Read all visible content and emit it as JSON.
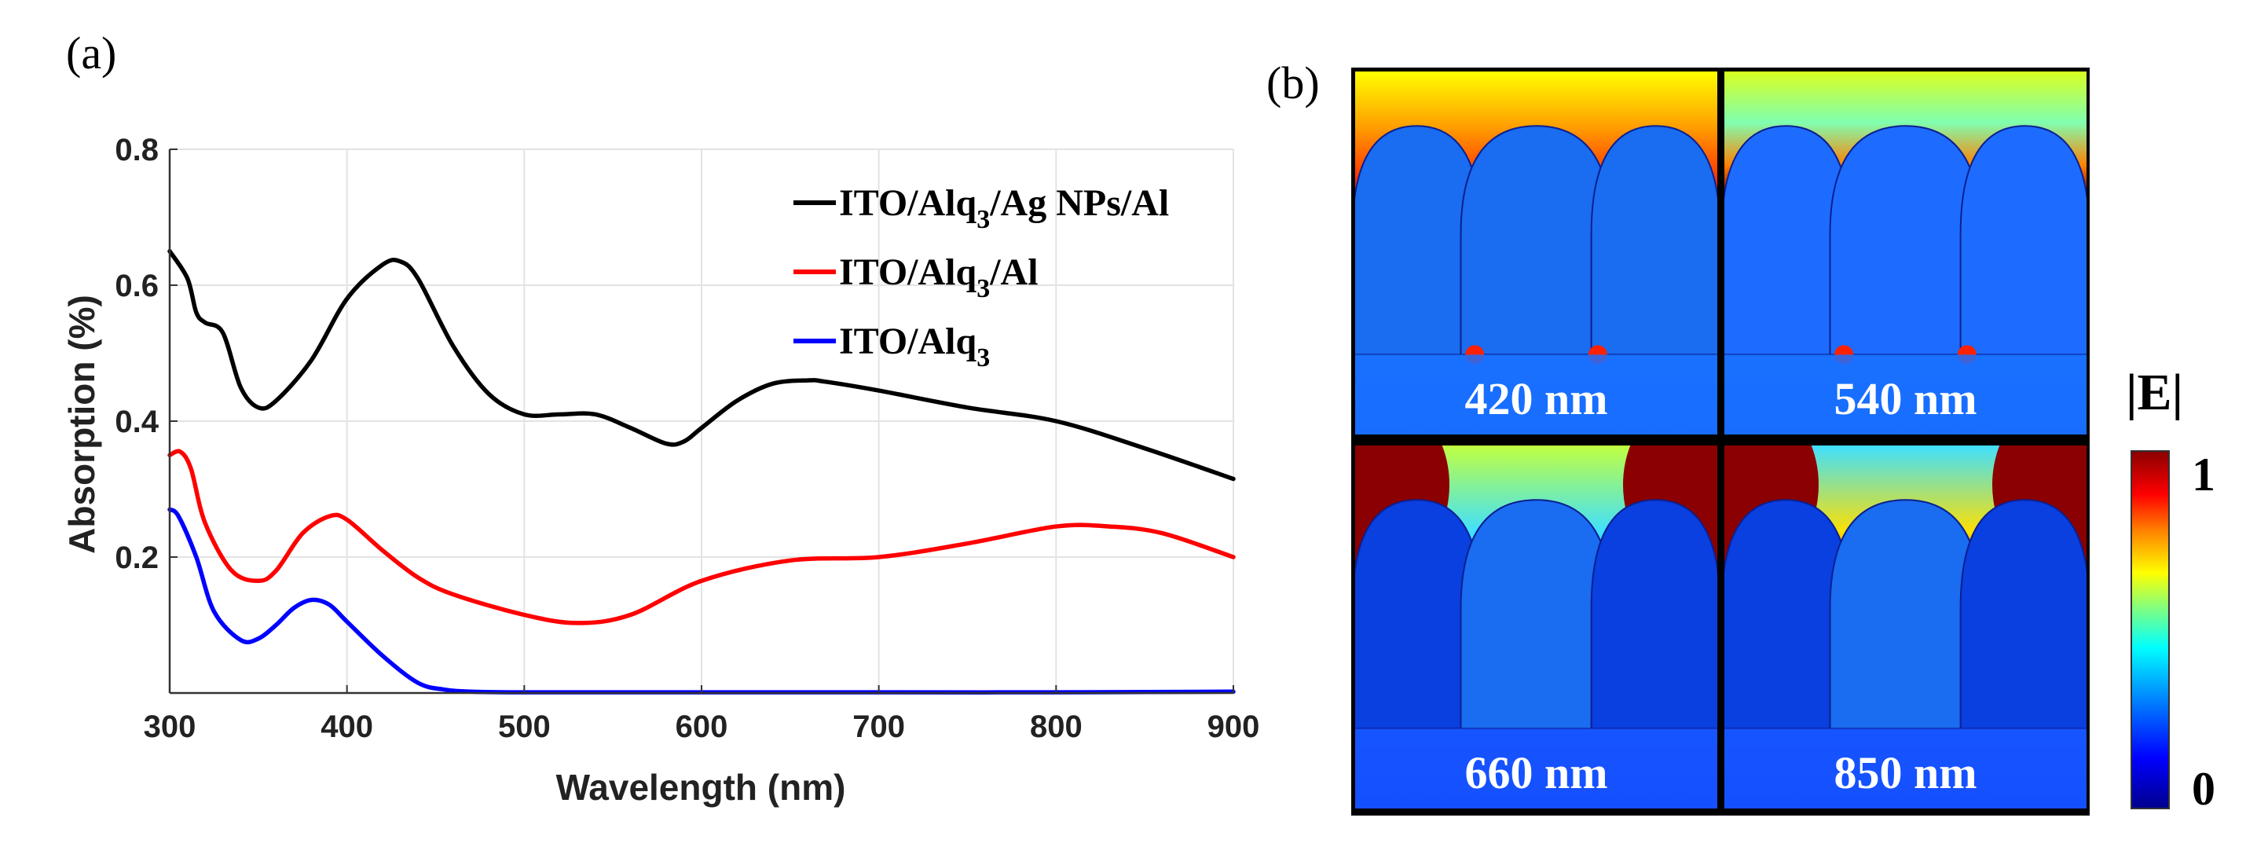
{
  "panels": {
    "a": "(a)",
    "b": "(b)"
  },
  "chart_data": {
    "type": "line",
    "title": "",
    "xlabel": "Wavelength (nm)",
    "ylabel": "Absorption (%)",
    "xlim": [
      300,
      900
    ],
    "ylim": [
      0,
      0.8
    ],
    "x_ticks": [
      "300",
      "400",
      "500",
      "600",
      "700",
      "800",
      "900"
    ],
    "y_ticks": [
      "0.2",
      "0.4",
      "0.6",
      "0.8"
    ],
    "grid": true,
    "legend_position": "top-right",
    "series": [
      {
        "name": "ITO/Alq3/Ag NPs/Al",
        "legend_main": "ITO/Alq",
        "legend_sub": "3",
        "legend_tail": "/Ag NPs/Al",
        "color": "#000000",
        "x": [
          300,
          310,
          315,
          320,
          330,
          340,
          350,
          360,
          380,
          400,
          420,
          430,
          440,
          460,
          480,
          500,
          520,
          540,
          560,
          580,
          590,
          600,
          620,
          640,
          660,
          670,
          700,
          750,
          800,
          850,
          900
        ],
        "y": [
          0.65,
          0.61,
          0.56,
          0.545,
          0.53,
          0.45,
          0.42,
          0.43,
          0.49,
          0.58,
          0.63,
          0.635,
          0.61,
          0.51,
          0.44,
          0.41,
          0.41,
          0.41,
          0.39,
          0.367,
          0.37,
          0.39,
          0.43,
          0.455,
          0.46,
          0.458,
          0.445,
          0.42,
          0.4,
          0.36,
          0.315
        ]
      },
      {
        "name": "ITO/Alq3/Al",
        "legend_main": "ITO/Alq",
        "legend_sub": "3",
        "legend_tail": "/Al",
        "color": "#ff0000",
        "x": [
          300,
          306,
          312,
          320,
          335,
          350,
          360,
          375,
          390,
          400,
          420,
          440,
          460,
          500,
          530,
          560,
          600,
          650,
          700,
          750,
          800,
          830,
          860,
          900
        ],
        "y": [
          0.35,
          0.355,
          0.33,
          0.25,
          0.18,
          0.165,
          0.18,
          0.235,
          0.26,
          0.255,
          0.21,
          0.17,
          0.145,
          0.115,
          0.103,
          0.115,
          0.165,
          0.195,
          0.2,
          0.22,
          0.245,
          0.245,
          0.235,
          0.2
        ]
      },
      {
        "name": "ITO/Alq3",
        "legend_main": "ITO/Alq",
        "legend_sub": "3",
        "legend_tail": "",
        "color": "#0000ff",
        "x": [
          300,
          305,
          315,
          325,
          340,
          350,
          360,
          370,
          380,
          390,
          400,
          420,
          440,
          455,
          470,
          500,
          600,
          700,
          800,
          900
        ],
        "y": [
          0.27,
          0.26,
          0.2,
          0.12,
          0.078,
          0.08,
          0.1,
          0.125,
          0.137,
          0.13,
          0.105,
          0.055,
          0.015,
          0.005,
          0.002,
          0.001,
          0.001,
          0.001,
          0.001,
          0.002
        ]
      }
    ]
  },
  "field_maps": {
    "panels": [
      {
        "label": "420 nm"
      },
      {
        "label": "540 nm"
      },
      {
        "label": "660 nm"
      },
      {
        "label": "850 nm"
      }
    ],
    "colorbar": {
      "title": "|E|",
      "max_label": "1",
      "min_label": "0"
    }
  }
}
